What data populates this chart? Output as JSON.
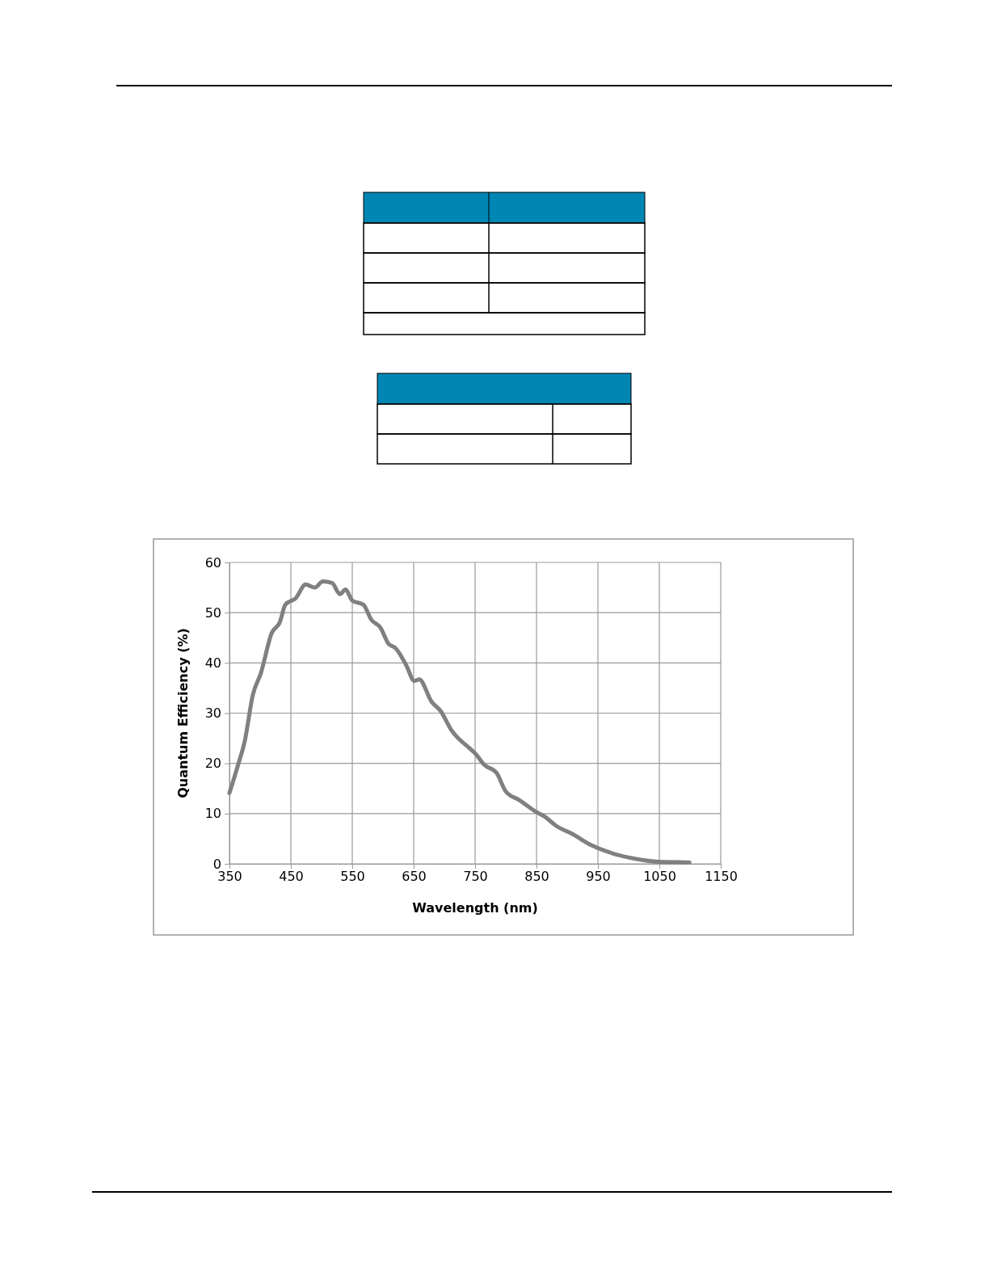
{
  "chart_data": {
    "type": "line",
    "xlabel": "Wavelength (nm)",
    "ylabel": "Quantum Efficiency (%)",
    "xlim": [
      350,
      1150
    ],
    "xticks": [
      350,
      450,
      550,
      650,
      750,
      850,
      950,
      1050,
      1150
    ],
    "ylim": [
      0,
      60
    ],
    "yticks": [
      0,
      10,
      20,
      30,
      40,
      50,
      60
    ],
    "grid": true,
    "marker": "none",
    "line_style": "solid",
    "series": [
      {
        "color": "#808080",
        "x": [
          350,
          364,
          375,
          388,
          401,
          419,
          432,
          441,
          458,
          474,
          489,
          502,
          517,
          530,
          539,
          550,
          568,
          581,
          596,
          609,
          620,
          638,
          651,
          659,
          679,
          694,
          711,
          742,
          750,
          765,
          785,
          800,
          822,
          850,
          862,
          884,
          906,
          941,
          976,
          1011,
          1050,
          1099
        ],
        "values": [
          14.1,
          19.7,
          24.5,
          33.6,
          37.9,
          46,
          48.1,
          51.6,
          52.9,
          55.6,
          55,
          56.2,
          55.9,
          53.7,
          54.6,
          52.4,
          51.6,
          48.6,
          47,
          43.8,
          43,
          39.5,
          36.4,
          36.7,
          32.3,
          30.4,
          26.7,
          22.9,
          22,
          19.7,
          18.1,
          14.4,
          12.7,
          10.3,
          9.5,
          7.4,
          6.1,
          3.6,
          2,
          1,
          0.4,
          0.3
        ]
      }
    ]
  }
}
